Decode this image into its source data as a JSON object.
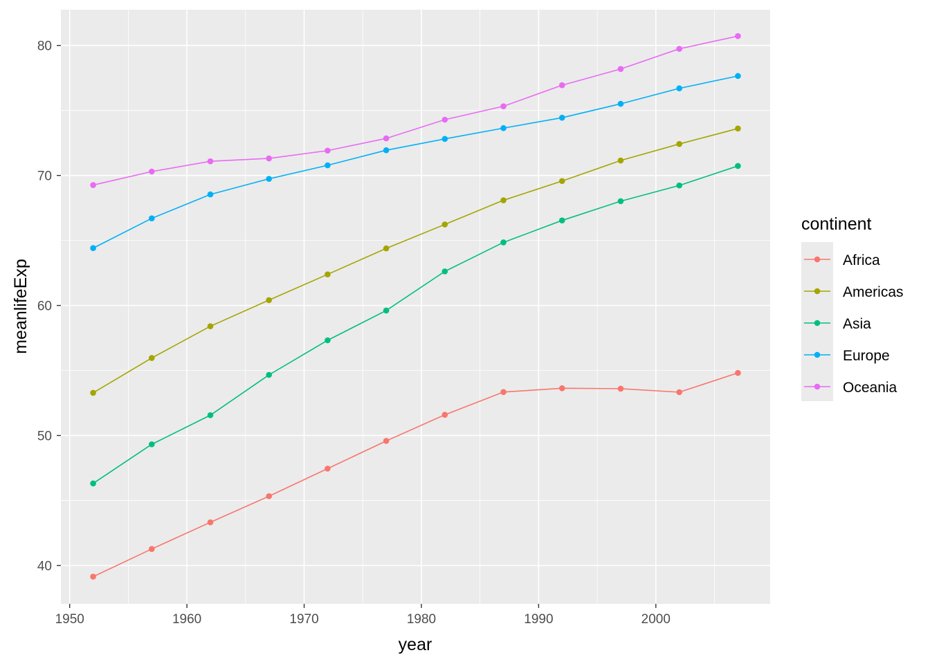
{
  "chart_data": {
    "type": "line",
    "title": "",
    "xlabel": "year",
    "ylabel": "meanlifeExp",
    "x": [
      1952,
      1957,
      1962,
      1967,
      1972,
      1977,
      1982,
      1987,
      1992,
      1997,
      2002,
      2007
    ],
    "xlim": [
      1949.25,
      2009.75
    ],
    "ylim": [
      37.05,
      82.75
    ],
    "xticks": [
      1950,
      1960,
      1970,
      1980,
      1990,
      2000
    ],
    "xtick_labels": [
      "1950",
      "1960",
      "1970",
      "1980",
      "1990",
      "2000"
    ],
    "yticks": [
      40,
      50,
      60,
      70,
      80
    ],
    "ytick_labels": [
      "40",
      "50",
      "60",
      "70",
      "80"
    ],
    "grid": true,
    "legend": {
      "title": "continent",
      "placement": "right"
    },
    "series": [
      {
        "name": "Africa",
        "color": "#F8766D",
        "values": [
          39.14,
          41.27,
          43.32,
          45.33,
          47.45,
          49.58,
          51.59,
          53.34,
          53.63,
          53.6,
          53.33,
          54.81
        ]
      },
      {
        "name": "Americas",
        "color": "#A3A500",
        "values": [
          53.28,
          55.96,
          58.4,
          60.41,
          62.39,
          64.39,
          66.23,
          68.09,
          69.57,
          71.15,
          72.42,
          73.61
        ]
      },
      {
        "name": "Asia",
        "color": "#00BF7D",
        "values": [
          46.31,
          49.32,
          51.56,
          54.66,
          57.32,
          59.61,
          62.62,
          64.85,
          66.54,
          68.02,
          69.23,
          70.73
        ]
      },
      {
        "name": "Europe",
        "color": "#00B0F6",
        "values": [
          64.41,
          66.7,
          68.54,
          69.74,
          70.78,
          71.94,
          72.81,
          73.64,
          74.44,
          75.51,
          76.7,
          77.65
        ]
      },
      {
        "name": "Oceania",
        "color": "#E76BF3",
        "values": [
          69.26,
          70.3,
          71.09,
          71.31,
          71.91,
          72.85,
          74.29,
          75.32,
          76.94,
          78.19,
          79.74,
          80.72
        ]
      }
    ]
  }
}
